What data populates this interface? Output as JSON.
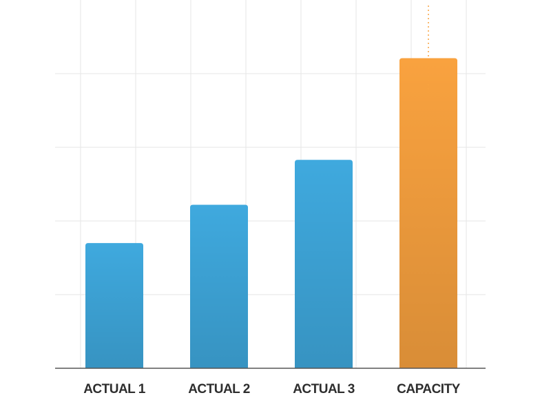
{
  "chart_data": {
    "type": "bar",
    "categories": [
      "ACTUAL 1",
      "ACTUAL 2",
      "ACTUAL 3",
      "CAPACITY"
    ],
    "values": [
      1.7,
      2.22,
      2.83,
      4.21
    ],
    "colors": [
      "#3fa9de",
      "#3fa9de",
      "#3fa9de",
      "#f9a23f"
    ],
    "ylim": [
      0,
      5
    ],
    "yticks": [
      1,
      2,
      3,
      4
    ],
    "grid": true
  }
}
